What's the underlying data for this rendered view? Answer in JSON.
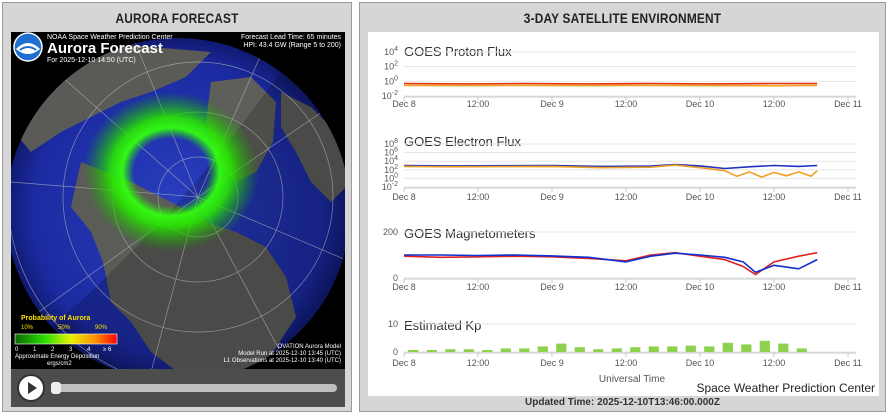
{
  "aurora_panel": {
    "title": "AURORA FORECAST",
    "header": {
      "agency": "NOAA Space Weather Prediction Center",
      "title": "Aurora Forecast",
      "for_time": "For 2025-12-10 14:50 (UTC)",
      "lead_time": "Forecast Lead Time:  65 minutes",
      "hpi": "HPI:  43.4 GW (Range 5 to 200)"
    },
    "legend": {
      "title": "Probability of Aurora",
      "pct_labels": [
        "10%",
        "50%",
        "90%"
      ],
      "scale_labels": [
        "0",
        "1",
        "2",
        "3",
        "4",
        "≥ 6"
      ],
      "energy_label": "Approximate Energy Deposition",
      "energy_units": "ergs/cm2"
    },
    "model_info": [
      "OVATION Aurora Model",
      "Model Run at 2025-12-10 13:45 (UTC)",
      "L1 Observations at 2025-12-10 13:40 (UTC)"
    ],
    "controls": {
      "play_icon": "play-icon",
      "progress": 0.0
    }
  },
  "sat_panel": {
    "title": "3-DAY SATELLITE ENVIRONMENT",
    "updated": "Updated Time: 2025-12-10T13:46:00.000Z",
    "x_axis_title": "Universal Time",
    "credit": "Space Weather Prediction Center"
  },
  "chart_data": [
    {
      "type": "line",
      "title": "GOES Proton Flux",
      "y_scale": "log",
      "y_tick_labels": [
        "10^4",
        "10^2",
        "10^0",
        "10^-2"
      ],
      "x_tick_labels": [
        "Dec 8",
        "12:00",
        "Dec 9",
        "12:00",
        "Dec 10",
        "12:00",
        "Dec 11"
      ],
      "x_range_hours": [
        0,
        72
      ],
      "ylim_exp": [
        -2,
        4
      ],
      "series": [
        {
          "color": "#e03010",
          "x_hours": [
            0,
            10,
            20,
            30,
            40,
            50,
            60,
            67
          ],
          "y_exp": [
            -0.3,
            -0.35,
            -0.3,
            -0.35,
            -0.3,
            -0.35,
            -0.3,
            -0.3
          ]
        },
        {
          "color": "#f0a020",
          "x_hours": [
            0,
            10,
            20,
            30,
            40,
            50,
            60,
            67
          ],
          "y_exp": [
            -0.55,
            -0.6,
            -0.55,
            -0.6,
            -0.55,
            -0.6,
            -0.6,
            -0.55
          ]
        }
      ]
    },
    {
      "type": "line",
      "title": "GOES Electron Flux",
      "y_scale": "log",
      "y_tick_labels": [
        "10^8",
        "10^6",
        "10^4",
        "10^2",
        "10^0",
        "10^-2"
      ],
      "x_tick_labels": [
        "Dec 8",
        "12:00",
        "Dec 9",
        "12:00",
        "Dec 10",
        "12:00",
        "Dec 11"
      ],
      "x_range_hours": [
        0,
        72
      ],
      "ylim_exp": [
        -2,
        8
      ],
      "series": [
        {
          "color": "#2030c0",
          "x_hours": [
            0,
            8,
            16,
            24,
            32,
            40,
            44,
            48,
            52,
            56,
            60,
            64,
            67
          ],
          "y_exp": [
            3.0,
            2.9,
            2.95,
            3.0,
            2.8,
            2.85,
            3.2,
            2.9,
            2.3,
            2.7,
            3.0,
            2.8,
            3.0
          ]
        },
        {
          "color": "#f0a020",
          "x_hours": [
            0,
            8,
            16,
            24,
            32,
            40,
            44,
            48,
            52,
            54,
            56,
            58,
            60,
            62,
            64,
            66,
            67
          ],
          "y_exp": [
            2.8,
            2.7,
            2.75,
            2.8,
            2.5,
            2.6,
            3.1,
            2.5,
            1.8,
            0.5,
            1.5,
            0.3,
            1.4,
            0.6,
            1.5,
            0.5,
            1.8
          ]
        }
      ]
    },
    {
      "type": "line",
      "title": "GOES Magnetometers",
      "y_tick_labels": [
        "200",
        "0"
      ],
      "x_tick_labels": [
        "Dec 8",
        "12:00",
        "Dec 9",
        "12:00",
        "Dec 10",
        "12:00",
        "Dec 11"
      ],
      "x_range_hours": [
        0,
        72
      ],
      "ylim": [
        0,
        200
      ],
      "series": [
        {
          "color": "#e02020",
          "x_hours": [
            0,
            6,
            12,
            18,
            24,
            30,
            36,
            40,
            44,
            48,
            52,
            55,
            57,
            60,
            64,
            67
          ],
          "y": [
            95,
            90,
            92,
            95,
            92,
            85,
            75,
            100,
            110,
            95,
            80,
            50,
            15,
            70,
            95,
            110
          ]
        },
        {
          "color": "#1030d0",
          "x_hours": [
            0,
            6,
            12,
            18,
            24,
            30,
            36,
            40,
            44,
            48,
            52,
            55,
            57,
            60,
            64,
            67
          ],
          "y": [
            100,
            100,
            98,
            100,
            96,
            90,
            70,
            95,
            108,
            100,
            90,
            70,
            25,
            55,
            40,
            80
          ]
        }
      ]
    },
    {
      "type": "bar",
      "title": "Estimated Kp",
      "y_tick_labels": [
        "10",
        "0"
      ],
      "x_tick_labels": [
        "Dec 8",
        "12:00",
        "Dec 9",
        "12:00",
        "Dec 10",
        "12:00",
        "Dec 11"
      ],
      "x_range_hours": [
        0,
        72
      ],
      "ylim": [
        0,
        10
      ],
      "bar_color": "#8ed14f",
      "bars_x_hours": [
        1.5,
        4.5,
        7.5,
        10.5,
        13.5,
        16.5,
        19.5,
        22.5,
        25.5,
        28.5,
        31.5,
        34.5,
        37.5,
        40.5,
        43.5,
        46.5,
        49.5,
        52.5,
        55.5,
        58.5,
        61.5,
        64.5
      ],
      "values": [
        0.7,
        0.7,
        1.0,
        1.0,
        0.7,
        1.3,
        1.3,
        2.0,
        3.0,
        1.7,
        1.0,
        1.3,
        1.7,
        2.0,
        2.0,
        2.3,
        2.0,
        3.3,
        2.7,
        4.0,
        3.0,
        1.3
      ]
    }
  ]
}
